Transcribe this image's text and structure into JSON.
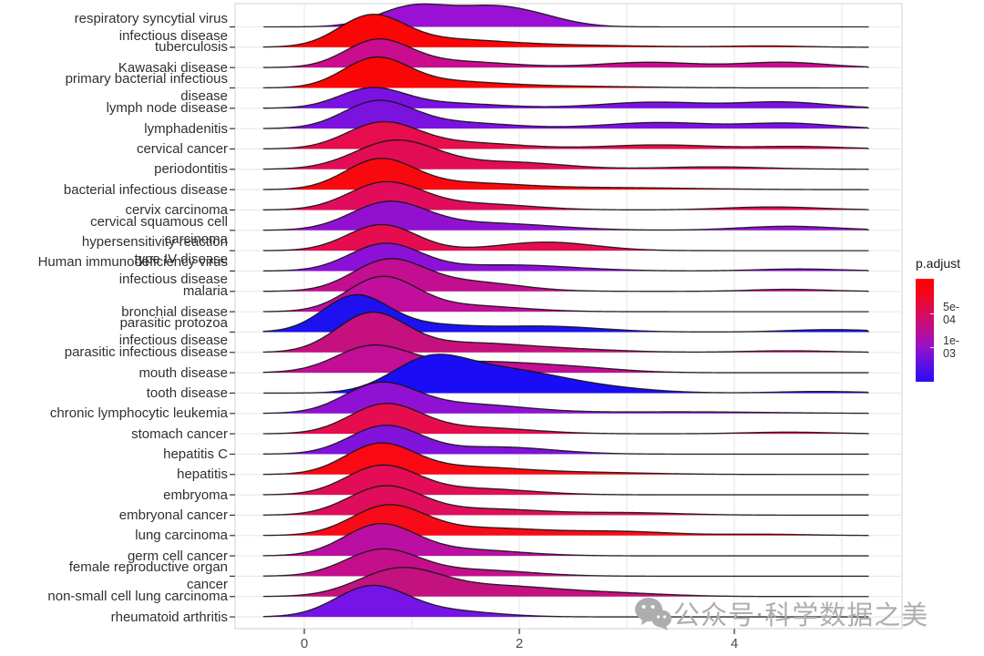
{
  "chart_data": {
    "type": "ridgeline",
    "title": "",
    "xlabel": "",
    "ylabel": "",
    "x_ticks": [
      "0",
      "2",
      "4"
    ],
    "x_tick_values": [
      0,
      2,
      4
    ],
    "x_gridline_values": [
      0,
      1,
      2,
      3,
      4,
      5
    ],
    "xlim": [
      -0.38,
      5.25
    ],
    "grid": "on",
    "legend_position": "right",
    "rows": [
      {
        "label": [
          "respiratory syncytial virus",
          "infectious disease"
        ],
        "color": "#9A10D5",
        "gaussians": [
          [
            1.0,
            0.32,
            0.95
          ],
          [
            1.75,
            0.38,
            0.95
          ],
          [
            2.25,
            0.3,
            0.2
          ]
        ]
      },
      {
        "label": [
          "tuberculosis"
        ],
        "color": "#FB0606",
        "gaussians": [
          [
            0.62,
            0.3,
            1.42
          ],
          [
            1.25,
            0.55,
            0.35
          ],
          [
            2.3,
            0.8,
            0.1
          ],
          [
            4.3,
            0.35,
            0.06
          ]
        ]
      },
      {
        "label": [
          "Kawasaki disease"
        ],
        "color": "#C90D8E",
        "gaussians": [
          [
            0.68,
            0.3,
            1.3
          ],
          [
            1.4,
            0.5,
            0.3
          ],
          [
            3.2,
            0.45,
            0.26
          ],
          [
            4.45,
            0.4,
            0.26
          ]
        ]
      },
      {
        "label": [
          "primary bacterial infectious",
          "disease"
        ],
        "color": "#FB0606",
        "gaussians": [
          [
            0.66,
            0.3,
            1.38
          ],
          [
            1.3,
            0.5,
            0.3
          ],
          [
            2.4,
            0.7,
            0.08
          ]
        ]
      },
      {
        "label": [
          "lymph node disease"
        ],
        "color": "#7A12E2",
        "gaussians": [
          [
            0.62,
            0.3,
            0.92
          ],
          [
            1.3,
            0.5,
            0.25
          ],
          [
            3.25,
            0.5,
            0.3
          ],
          [
            4.45,
            0.42,
            0.3
          ]
        ]
      },
      {
        "label": [
          "lymphadenitis"
        ],
        "color": "#7C12E0",
        "gaussians": [
          [
            0.68,
            0.32,
            1.28
          ],
          [
            1.4,
            0.5,
            0.3
          ],
          [
            3.3,
            0.5,
            0.3
          ],
          [
            4.5,
            0.4,
            0.26
          ]
        ]
      },
      {
        "label": [
          "cervical cancer"
        ],
        "color": "#E80D4C",
        "gaussians": [
          [
            0.72,
            0.33,
            1.25
          ],
          [
            1.5,
            0.5,
            0.3
          ],
          [
            3.3,
            0.5,
            0.2
          ],
          [
            4.6,
            0.4,
            0.12
          ]
        ]
      },
      {
        "label": [
          "periodontitis"
        ],
        "color": "#E20D55",
        "gaussians": [
          [
            0.85,
            0.38,
            1.4
          ],
          [
            1.9,
            0.5,
            0.35
          ],
          [
            3.8,
            0.5,
            0.12
          ]
        ]
      },
      {
        "label": [
          "bacterial infectious disease"
        ],
        "color": "#FA0810",
        "gaussians": [
          [
            0.7,
            0.32,
            1.45
          ],
          [
            1.5,
            0.5,
            0.3
          ],
          [
            2.8,
            0.8,
            0.1
          ]
        ]
      },
      {
        "label": [
          "cervix carcinoma"
        ],
        "color": "#E10D5C",
        "gaussians": [
          [
            0.75,
            0.34,
            1.32
          ],
          [
            1.6,
            0.5,
            0.3
          ],
          [
            4.35,
            0.45,
            0.15
          ]
        ]
      },
      {
        "label": [
          "cervical squamous cell",
          "carcinoma"
        ],
        "color": "#9211D1",
        "gaussians": [
          [
            0.78,
            0.35,
            1.32
          ],
          [
            1.7,
            0.6,
            0.35
          ],
          [
            4.5,
            0.45,
            0.2
          ]
        ]
      },
      {
        "label": [
          "hypersensitivity reaction",
          "type IV disease"
        ],
        "color": "#E50D50",
        "gaussians": [
          [
            0.72,
            0.32,
            1.28
          ],
          [
            2.25,
            0.45,
            0.42
          ]
        ]
      },
      {
        "label": [
          "Human immunodeficiency virus",
          "infectious disease"
        ],
        "color": "#8C11D8",
        "gaussians": [
          [
            0.75,
            0.33,
            1.32
          ],
          [
            1.9,
            0.6,
            0.3
          ],
          [
            4.6,
            0.4,
            0.1
          ]
        ]
      },
      {
        "label": [
          "malaria"
        ],
        "color": "#C30E91",
        "gaussians": [
          [
            0.78,
            0.33,
            1.5
          ],
          [
            1.55,
            0.45,
            0.45
          ],
          [
            4.5,
            0.35,
            0.1
          ]
        ]
      },
      {
        "label": [
          "bronchial disease"
        ],
        "color": "#C20E9D",
        "gaussians": [
          [
            0.72,
            0.32,
            1.65
          ],
          [
            1.5,
            0.5,
            0.3
          ]
        ]
      },
      {
        "label": [
          "parasitic protozoa",
          "infectious disease"
        ],
        "color": "#1D12EF",
        "gaussians": [
          [
            0.47,
            0.3,
            1.7
          ],
          [
            1.1,
            0.45,
            0.35
          ],
          [
            2.25,
            0.5,
            0.28
          ],
          [
            4.9,
            0.4,
            0.12
          ]
        ]
      },
      {
        "label": [
          "parasitic infectious disease"
        ],
        "color": "#C6107E",
        "gaussians": [
          [
            0.62,
            0.32,
            1.85
          ],
          [
            1.5,
            0.55,
            0.45
          ],
          [
            2.5,
            0.5,
            0.12
          ],
          [
            4.5,
            0.4,
            0.08
          ]
        ]
      },
      {
        "label": [
          "mouth disease"
        ],
        "color": "#C30E96",
        "gaussians": [
          [
            0.62,
            0.33,
            1.15
          ],
          [
            1.6,
            0.7,
            0.55
          ],
          [
            2.6,
            0.4,
            0.1
          ]
        ]
      },
      {
        "label": [
          "tooth disease"
        ],
        "color": "#1A0DF5",
        "gaussians": [
          [
            1.15,
            0.35,
            1.45
          ],
          [
            1.85,
            0.5,
            1.05
          ],
          [
            2.7,
            0.5,
            0.25
          ],
          [
            4.8,
            0.4,
            0.08
          ]
        ]
      },
      {
        "label": [
          "chronic lymphocytic leukemia"
        ],
        "color": "#9011D3",
        "gaussians": [
          [
            0.7,
            0.33,
            1.38
          ],
          [
            1.5,
            0.55,
            0.45
          ],
          [
            3.5,
            0.8,
            0.08
          ]
        ]
      },
      {
        "label": [
          "stomach cancer"
        ],
        "color": "#E60D4E",
        "gaussians": [
          [
            0.75,
            0.33,
            1.42
          ],
          [
            1.6,
            0.5,
            0.3
          ],
          [
            4.5,
            0.4,
            0.08
          ]
        ]
      },
      {
        "label": [
          "hepatitis C"
        ],
        "color": "#8012DC",
        "gaussians": [
          [
            0.75,
            0.33,
            1.38
          ],
          [
            1.8,
            0.5,
            0.35
          ]
        ]
      },
      {
        "label": [
          "hepatitis"
        ],
        "color": "#FA0814",
        "gaussians": [
          [
            0.7,
            0.32,
            1.45
          ],
          [
            1.5,
            0.5,
            0.35
          ],
          [
            2.6,
            0.6,
            0.1
          ]
        ]
      },
      {
        "label": [
          "embryoma"
        ],
        "color": "#E20D56",
        "gaussians": [
          [
            0.72,
            0.33,
            1.4
          ],
          [
            1.6,
            0.5,
            0.3
          ]
        ]
      },
      {
        "label": [
          "embryonal cancer"
        ],
        "color": "#DF0D5B",
        "gaussians": [
          [
            0.75,
            0.34,
            1.4
          ],
          [
            1.7,
            0.5,
            0.3
          ],
          [
            3.0,
            0.5,
            0.12
          ]
        ]
      },
      {
        "label": [
          "lung carcinoma"
        ],
        "color": "#F90A18",
        "gaussians": [
          [
            0.78,
            0.34,
            1.45
          ],
          [
            1.7,
            0.5,
            0.35
          ],
          [
            2.9,
            0.5,
            0.2
          ],
          [
            4.3,
            0.4,
            0.06
          ]
        ]
      },
      {
        "label": [
          "germ cell cancer"
        ],
        "color": "#BB0FA3",
        "gaussians": [
          [
            0.7,
            0.33,
            1.5
          ],
          [
            1.5,
            0.5,
            0.3
          ]
        ]
      },
      {
        "label": [
          "female reproductive organ",
          "cancer"
        ],
        "color": "#C50E8C",
        "gaussians": [
          [
            0.72,
            0.34,
            1.28
          ],
          [
            1.6,
            0.5,
            0.3
          ]
        ]
      },
      {
        "label": [
          "non-small cell lung carcinoma"
        ],
        "color": "#C31180",
        "gaussians": [
          [
            0.88,
            0.38,
            1.3
          ],
          [
            1.8,
            0.55,
            0.5
          ],
          [
            2.9,
            0.5,
            0.15
          ]
        ]
      },
      {
        "label": [
          "rheumatoid arthritis"
        ],
        "color": "#7613E6",
        "gaussians": [
          [
            0.62,
            0.33,
            1.45
          ],
          [
            1.3,
            0.45,
            0.3
          ]
        ]
      }
    ]
  },
  "legend": {
    "title": "p.adjust",
    "ticks": [
      {
        "label": "5e-04",
        "frac": 0.336
      },
      {
        "label": "1e-03",
        "frac": 0.664
      }
    ],
    "gradient": [
      "#FF0000",
      "#F00721",
      "#D90C5C",
      "#BC0E92",
      "#9611C9",
      "#5A10E5",
      "#2B0CF5"
    ]
  },
  "watermark": {
    "text": "公众号·科学数据之美"
  },
  "colors": {
    "grid": "#E8E8E8",
    "panel_border": "#D8D8D8",
    "curve_stroke": "#141414",
    "axis_text": "#4d4d4d",
    "label_text": "#303030",
    "tick_mark": "#333333",
    "watermark": "#ADADAD"
  }
}
